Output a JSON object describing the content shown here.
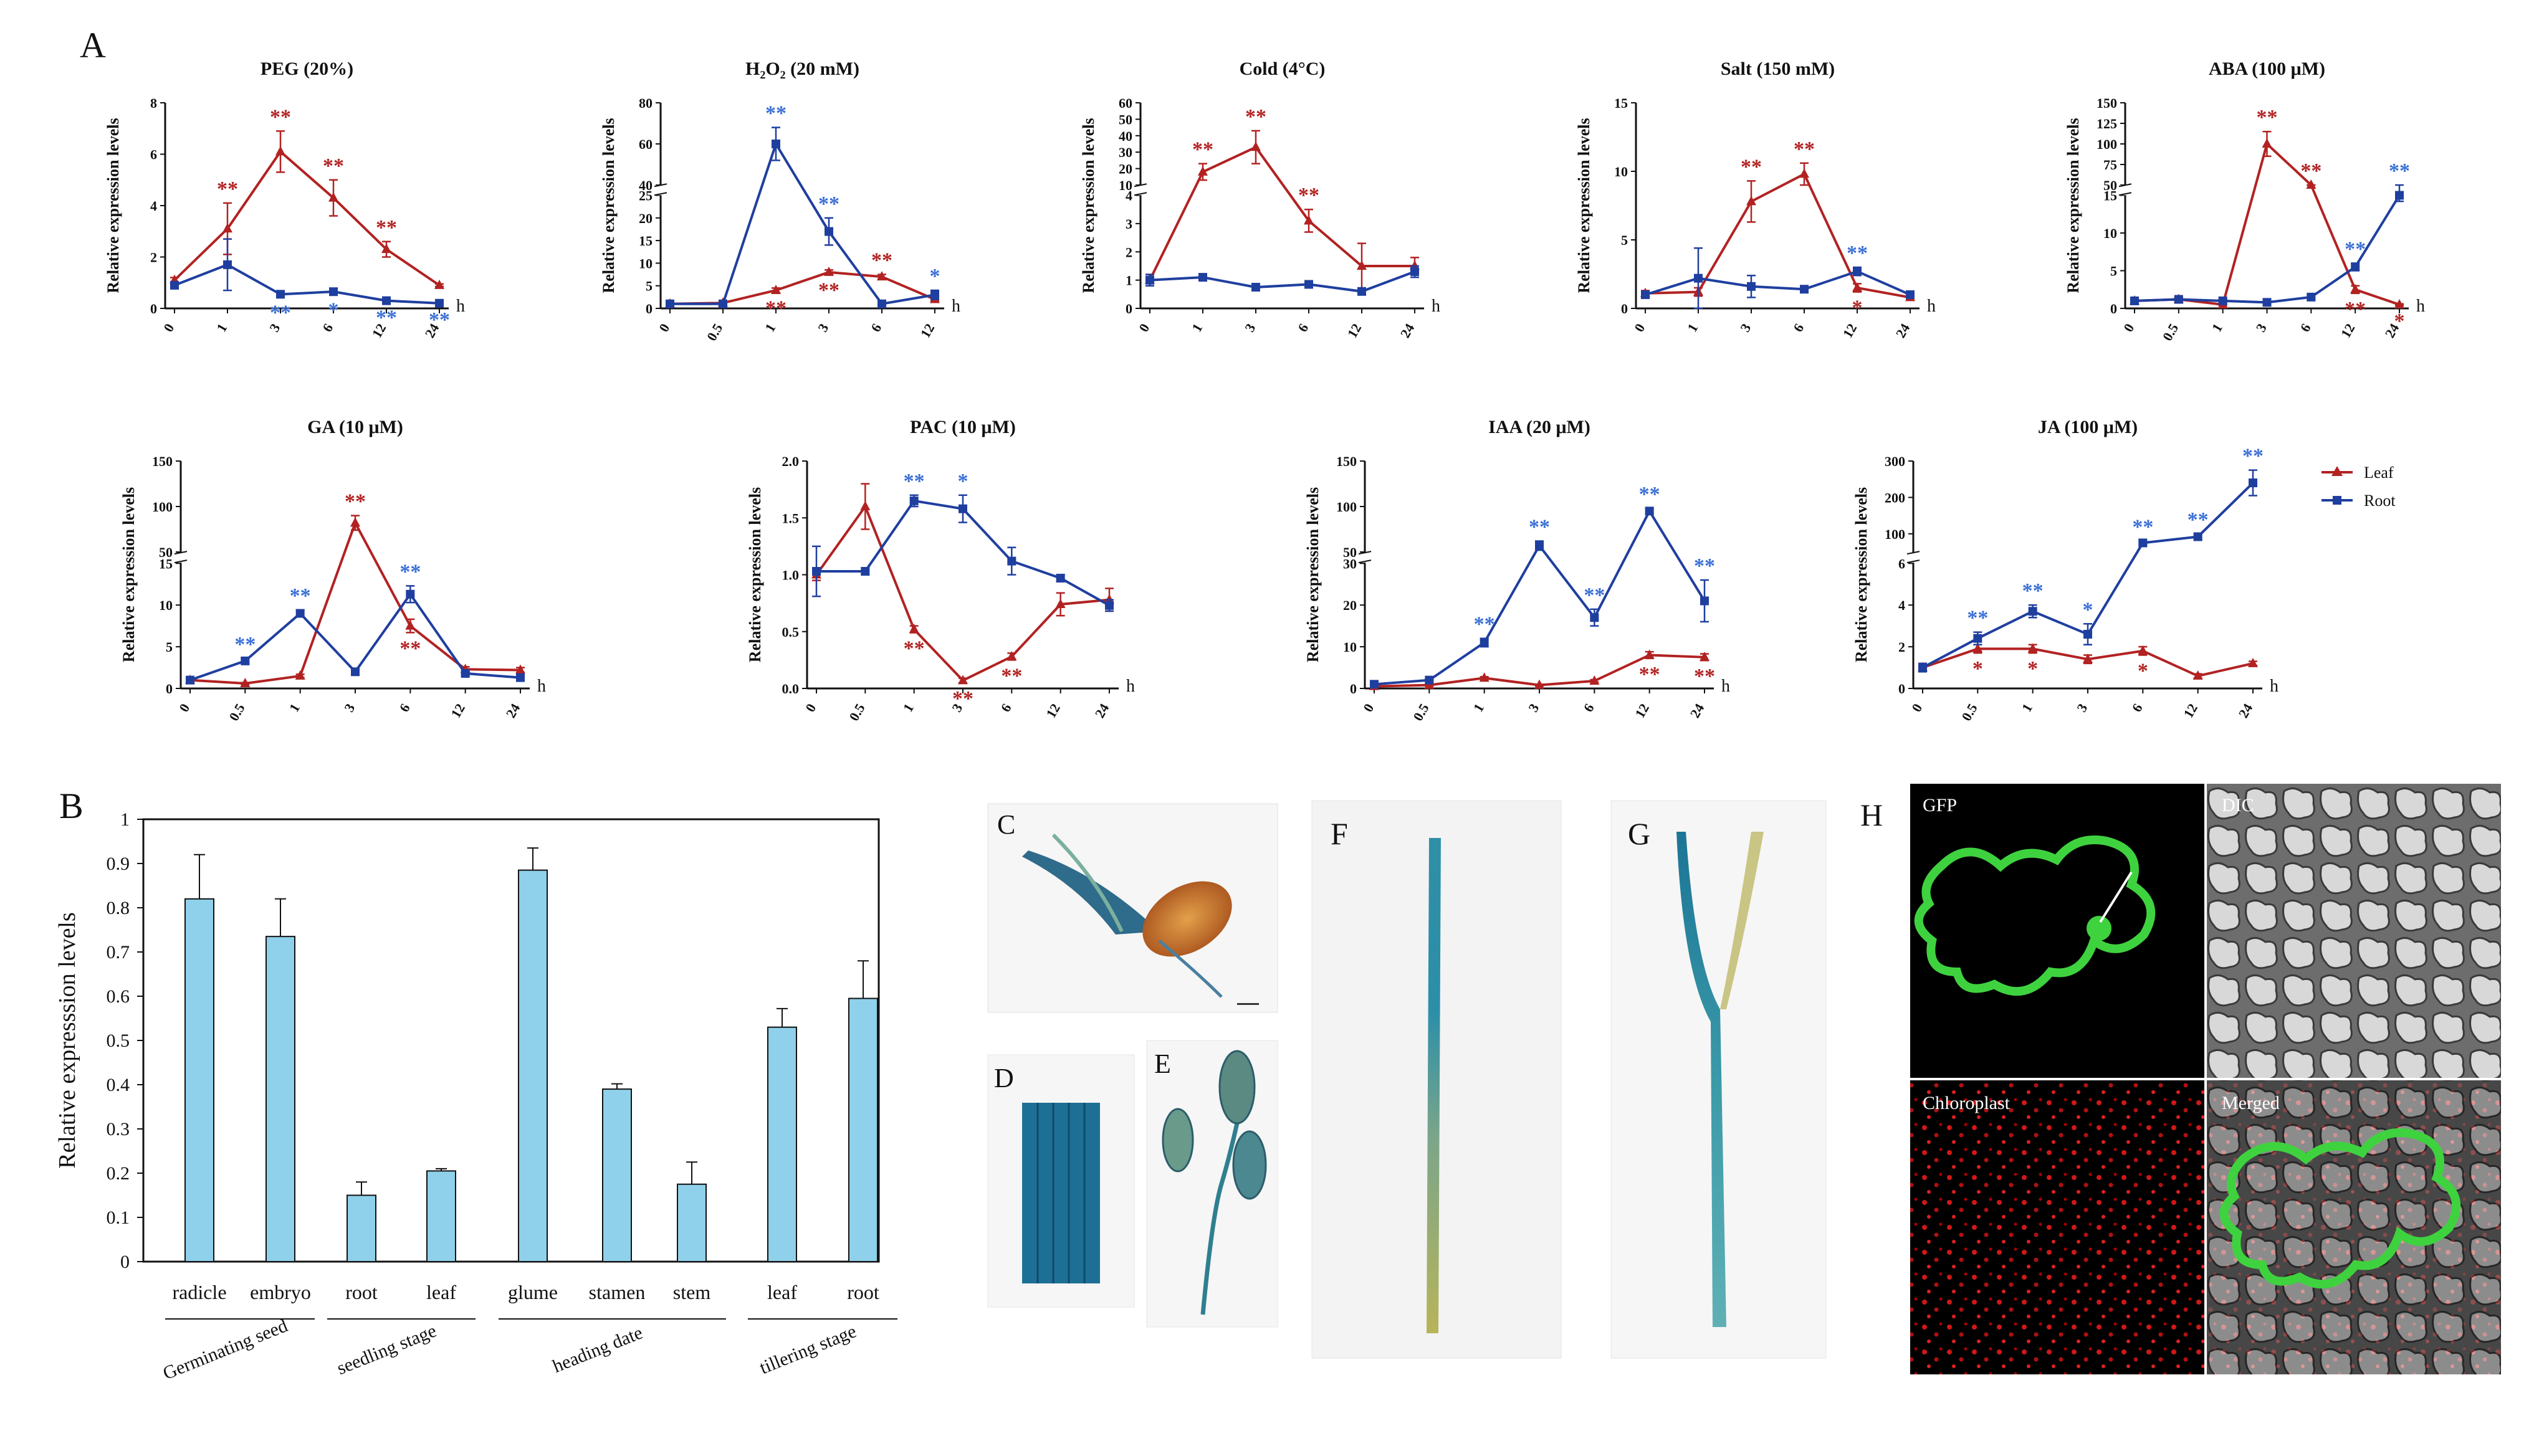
{
  "labels": {
    "A": "A",
    "B": "B",
    "C": "C",
    "D": "D",
    "E": "E",
    "F": "F",
    "G": "G",
    "H": "H"
  },
  "colors": {
    "leaf": "#b22222",
    "root": "#1f3f9f",
    "bar": "#8fd0ea",
    "star_leaf": "#b22222",
    "star_root": "#3b6fd6"
  },
  "legend": {
    "leaf": "Leaf",
    "root": "Root"
  },
  "ylabel": "Relative expression levels",
  "hour_unit": "h",
  "microscopy": {
    "gfp": "GFP",
    "dic": "DIC",
    "chloroplast": "Chloroplast",
    "merged": "Merged"
  },
  "chart_data": [
    {
      "type": "line",
      "title": "PEG (20%)",
      "x": [
        "0",
        "1",
        "3",
        "6",
        "12",
        "24"
      ],
      "yticks": [
        "0",
        "2",
        "4",
        "6",
        "8"
      ],
      "ylim": [
        0,
        8
      ],
      "series": [
        {
          "name": "Leaf",
          "values": [
            1.1,
            3.1,
            6.1,
            4.3,
            2.3,
            0.9
          ],
          "err": [
            0.1,
            1.0,
            0.8,
            0.7,
            0.3,
            0.05
          ],
          "stars": [
            "",
            "**",
            "**",
            "**",
            "**",
            ""
          ]
        },
        {
          "name": "Root",
          "values": [
            0.9,
            1.7,
            0.55,
            0.65,
            0.3,
            0.2
          ],
          "err": [
            0.1,
            1.0,
            0.1,
            0.1,
            0.05,
            0.03
          ],
          "stars": [
            "",
            "",
            "**",
            "*",
            "**",
            "**"
          ]
        }
      ]
    },
    {
      "type": "line",
      "title": "H₂O₂ (20 mM)",
      "x": [
        "0",
        "0.5",
        "1",
        "3",
        "6",
        "12"
      ],
      "yticks": [
        "0",
        "5",
        "10",
        "15",
        "20",
        "25",
        "40",
        "60",
        "80"
      ],
      "ylim": [
        0,
        80
      ],
      "axis_break": [
        25,
        40
      ],
      "series": [
        {
          "name": "Leaf",
          "values": [
            1,
            1.2,
            4,
            8,
            7,
            2
          ],
          "err": [
            0.2,
            0.2,
            0.5,
            0.5,
            0.5,
            0.3
          ],
          "stars": [
            "",
            "",
            "**",
            "**",
            "**",
            ""
          ]
        },
        {
          "name": "Root",
          "values": [
            1,
            1,
            60,
            17,
            1,
            3
          ],
          "err": [
            0.2,
            0.2,
            8,
            3,
            0.2,
            1
          ],
          "stars": [
            "",
            "",
            "**",
            "**",
            "",
            "*"
          ]
        }
      ]
    },
    {
      "type": "line",
      "title": "Cold (4°C)",
      "x": [
        "0",
        "1",
        "3",
        "6",
        "12",
        "24"
      ],
      "yticks": [
        "0",
        "1",
        "2",
        "3",
        "4",
        "10",
        "20",
        "30",
        "40",
        "50",
        "60"
      ],
      "ylim": [
        0,
        60
      ],
      "axis_break": [
        4,
        10
      ],
      "series": [
        {
          "name": "Leaf",
          "values": [
            1,
            18,
            33,
            3.1,
            1.5,
            1.5
          ],
          "err": [
            0.2,
            5,
            10,
            0.4,
            0.8,
            0.3
          ],
          "stars": [
            "",
            "**",
            "**",
            "**",
            "",
            ""
          ]
        },
        {
          "name": "Root",
          "values": [
            1,
            1.1,
            0.75,
            0.85,
            0.6,
            1.3
          ],
          "err": [
            0.2,
            0.1,
            0.05,
            0.05,
            0.05,
            0.2
          ],
          "stars": [
            "",
            "",
            "",
            "",
            "",
            ""
          ]
        }
      ]
    },
    {
      "type": "line",
      "title": "Salt (150 mM)",
      "x": [
        "0",
        "1",
        "3",
        "6",
        "12",
        "24"
      ],
      "yticks": [
        "0",
        "5",
        "10",
        "15"
      ],
      "ylim": [
        0,
        15
      ],
      "series": [
        {
          "name": "Leaf",
          "values": [
            1.1,
            1.2,
            7.8,
            9.8,
            1.5,
            0.8
          ],
          "err": [
            0.2,
            0.3,
            1.5,
            0.8,
            0.3,
            0.2
          ],
          "stars": [
            "",
            "",
            "**",
            "**",
            "*",
            ""
          ]
        },
        {
          "name": "Root",
          "values": [
            1,
            2.2,
            1.6,
            1.4,
            2.7,
            1.0
          ],
          "err": [
            0.2,
            2.2,
            0.8,
            0.2,
            0.3,
            0.1
          ],
          "stars": [
            "",
            "",
            "",
            "",
            "**",
            ""
          ]
        }
      ]
    },
    {
      "type": "line",
      "title": "ABA (100 μM)",
      "x": [
        "0",
        "0.5",
        "1",
        "3",
        "6",
        "12",
        "24"
      ],
      "yticks": [
        "0",
        "5",
        "10",
        "15",
        "50",
        "75",
        "100",
        "125",
        "150"
      ],
      "ylim": [
        0,
        150
      ],
      "axis_break": [
        15,
        50
      ],
      "series": [
        {
          "name": "Leaf",
          "values": [
            1,
            1.2,
            0.5,
            100,
            45,
            2.5,
            0.5
          ],
          "err": [
            0.2,
            0.2,
            0.1,
            15,
            5,
            0.5,
            0.1
          ],
          "stars": [
            "",
            "",
            "",
            "**",
            "**",
            "**",
            "*"
          ]
        },
        {
          "name": "Root",
          "values": [
            1,
            1.2,
            1,
            0.8,
            1.5,
            5.5,
            15
          ],
          "err": [
            0.2,
            0.2,
            0.2,
            0.2,
            0.3,
            0.5,
            0.8
          ],
          "stars": [
            "",
            "",
            "",
            "",
            "",
            "**",
            "**"
          ]
        }
      ]
    },
    {
      "type": "line",
      "title": "GA (10 μM)",
      "x": [
        "0",
        "0.5",
        "1",
        "3",
        "6",
        "12",
        "24"
      ],
      "yticks": [
        "0",
        "5",
        "10",
        "15",
        "50",
        "100",
        "150"
      ],
      "ylim": [
        0,
        150
      ],
      "axis_break": [
        15,
        50
      ],
      "series": [
        {
          "name": "Leaf",
          "values": [
            1,
            0.6,
            1.5,
            82,
            7.5,
            2.3,
            2.2
          ],
          "err": [
            0.2,
            0.1,
            0.2,
            8,
            0.8,
            0.3,
            0.3
          ],
          "stars": [
            "",
            "",
            "",
            "**",
            "**",
            "",
            ""
          ]
        },
        {
          "name": "Root",
          "values": [
            1,
            3.3,
            9,
            2,
            11.3,
            1.8,
            1.3
          ],
          "err": [
            0.2,
            0.3,
            0.4,
            0.2,
            1,
            0.2,
            0.2
          ],
          "stars": [
            "",
            "**",
            "**",
            "",
            "**",
            "",
            ""
          ]
        }
      ]
    },
    {
      "type": "line",
      "title": "PAC (10 μM)",
      "x": [
        "0",
        "0.5",
        "1",
        "3",
        "6",
        "12",
        "24"
      ],
      "yticks": [
        "0.0",
        "0.5",
        "1.0",
        "1.5",
        "2.0"
      ],
      "ylim": [
        0,
        2
      ],
      "series": [
        {
          "name": "Leaf",
          "values": [
            1.0,
            1.6,
            0.52,
            0.07,
            0.28,
            0.74,
            0.78
          ],
          "err": [
            0.05,
            0.2,
            0.03,
            0.02,
            0.03,
            0.1,
            0.1
          ],
          "stars": [
            "",
            "",
            "**",
            "**",
            "**",
            "",
            ""
          ]
        },
        {
          "name": "Root",
          "values": [
            1.03,
            1.03,
            1.65,
            1.58,
            1.12,
            0.97,
            0.73
          ],
          "err": [
            0.22,
            0.03,
            0.05,
            0.12,
            0.12,
            0.03,
            0.05
          ],
          "stars": [
            "",
            "",
            "**",
            "*",
            "",
            "",
            ""
          ]
        }
      ]
    },
    {
      "type": "line",
      "title": "IAA (20 μM)",
      "x": [
        "0",
        "0.5",
        "1",
        "3",
        "6",
        "12",
        "24"
      ],
      "yticks": [
        "0",
        "10",
        "20",
        "30",
        "50",
        "100",
        "150"
      ],
      "ylim": [
        0,
        150
      ],
      "axis_break": [
        30,
        50
      ],
      "series": [
        {
          "name": "Leaf",
          "values": [
            0.5,
            0.8,
            2.5,
            0.8,
            1.8,
            8,
            7.5
          ],
          "err": [
            0.2,
            0.2,
            0.3,
            0.2,
            0.3,
            0.8,
            0.8
          ],
          "stars": [
            "",
            "",
            "",
            "",
            "",
            "**",
            "**"
          ]
        },
        {
          "name": "Root",
          "values": [
            1,
            2,
            11,
            57,
            17,
            95,
            21
          ],
          "err": [
            0.2,
            0.3,
            1,
            5,
            2,
            3,
            5
          ],
          "stars": [
            "",
            "",
            "**",
            "**",
            "**",
            "**",
            "**"
          ]
        }
      ]
    },
    {
      "type": "line",
      "title": "JA (100 μM)",
      "x": [
        "0",
        "0.5",
        "1",
        "3",
        "6",
        "12",
        "24"
      ],
      "yticks": [
        "0",
        "2",
        "4",
        "6",
        "100",
        "200",
        "300"
      ],
      "ylim": [
        0,
        300
      ],
      "axis_break": [
        6,
        50
      ],
      "series": [
        {
          "name": "Leaf",
          "values": [
            1,
            1.9,
            1.9,
            1.4,
            1.8,
            0.6,
            1.2
          ],
          "err": [
            0.2,
            0.2,
            0.2,
            0.2,
            0.2,
            0.1,
            0.1
          ],
          "stars": [
            "",
            "*",
            "*",
            "",
            "*",
            "",
            ""
          ]
        },
        {
          "name": "Root",
          "values": [
            1,
            2.4,
            3.7,
            2.6,
            75,
            92,
            240
          ],
          "err": [
            0.2,
            0.3,
            0.3,
            0.5,
            5,
            8,
            35
          ],
          "stars": [
            "",
            "**",
            "**",
            "*",
            "**",
            "**",
            "**"
          ]
        }
      ]
    },
    {
      "type": "bar",
      "ylabel": "Relative expresssion levels",
      "yticks": [
        "0",
        "0.1",
        "0.2",
        "0.3",
        "0.4",
        "0.5",
        "0.6",
        "0.7",
        "0.8",
        "0.9",
        "1"
      ],
      "ylim": [
        0,
        1
      ],
      "categories": [
        "radicle",
        "embryo",
        "root",
        "leaf",
        "glume",
        "stamen",
        "stem",
        "leaf",
        "root"
      ],
      "values": [
        0.82,
        0.735,
        0.15,
        0.205,
        0.885,
        0.39,
        0.175,
        0.53,
        0.595
      ],
      "err": [
        0.1,
        0.085,
        0.03,
        0.005,
        0.05,
        0.012,
        0.05,
        0.042,
        0.085
      ],
      "groups": [
        {
          "label": "Germinating seed",
          "members": [
            0,
            1
          ]
        },
        {
          "label": "seedling stage",
          "members": [
            2,
            3
          ]
        },
        {
          "label": "heading date",
          "members": [
            4,
            5,
            6
          ]
        },
        {
          "label": "tillering stage",
          "members": [
            7,
            8
          ]
        }
      ]
    }
  ]
}
